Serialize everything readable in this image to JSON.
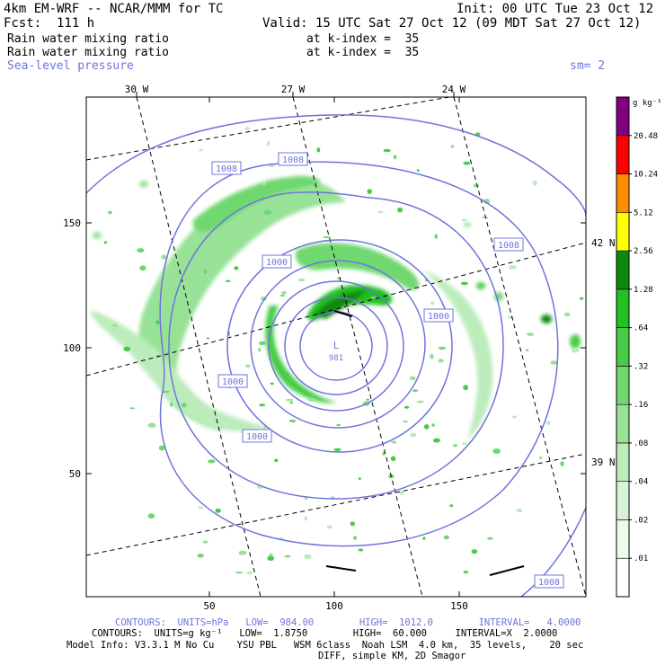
{
  "header": {
    "model": "4km EM-WRF -- NCAR/MMM for TC",
    "init": "Init: 00 UTC Tue 23 Oct 12",
    "fcst": "Fcst:  111 h",
    "valid": "Valid: 15 UTC Sat 27 Oct 12 (09 MDT Sat 27 Oct 12)",
    "field1": "Rain water mixing ratio",
    "level1": "at k-index =  35",
    "field2": "Rain water mixing ratio",
    "level2": "at k-index =  35",
    "field3": "Sea-level pressure",
    "smooth": "sm= 2"
  },
  "map": {
    "lon_labels": [
      "30 W",
      "27 W",
      "24 W"
    ],
    "lat_labels": [
      "42 N",
      "39 N"
    ],
    "x_ticks": [
      "50",
      "100",
      "150"
    ],
    "y_ticks": [
      "150",
      "100",
      "50"
    ],
    "low_symbol": "L",
    "low_value": "981",
    "isobar_labels": [
      "1008",
      "1008",
      "1008",
      "1000",
      "1000",
      "1000",
      "1000",
      "1008"
    ]
  },
  "colorbar": {
    "units": "g kg⁻¹",
    "levels": [
      ".01",
      ".02",
      ".04",
      ".08",
      ".16",
      ".32",
      ".64",
      "1.28",
      "2.56",
      "5.12",
      "10.24",
      "20.48"
    ],
    "colors": [
      "#ffffff",
      "#edfaed",
      "#d8f4d8",
      "#bcecbc",
      "#98e298",
      "#6fd86f",
      "#47cc47",
      "#22c022",
      "#0d8a0d",
      "#ffff00",
      "#ff8c00",
      "#ff0000",
      "#800080"
    ]
  },
  "footer": {
    "line1": "CONTOURS:  UNITS=hPa   LOW=  984.00        HIGH=  1012.0        INTERVAL=   4.0000",
    "line2": "CONTOURS:  UNITS=g kg⁻¹   LOW=  1.8750        HIGH=  60.000     INTERVAL=X  2.0000",
    "line3": "Model Info: V3.3.1 M No Cu    YSU PBL   WSM 6class  Noah LSM  4.0 km,  35 levels,    20 sec",
    "line4": "DIFF, simple KM, 2D Smagor"
  }
}
